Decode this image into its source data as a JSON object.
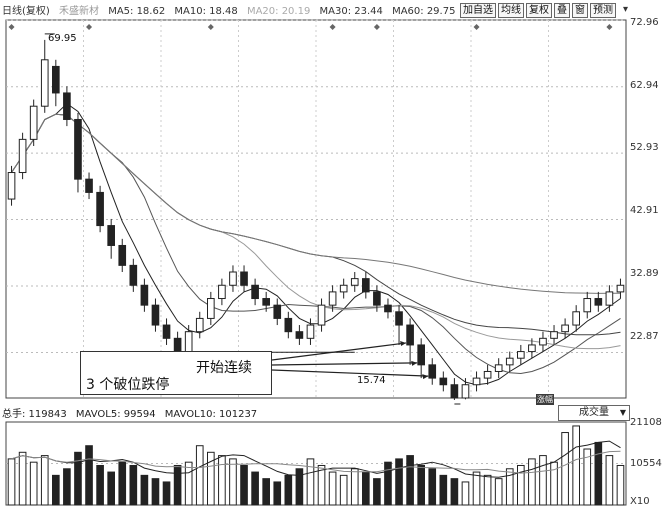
{
  "header": {
    "title": "日线(复权)",
    "stock": "禾盛新材",
    "ma": [
      {
        "label": "MA5: 18.62",
        "muted": false
      },
      {
        "label": "MA10: 18.48",
        "muted": false
      },
      {
        "label": "MA20: 20.19",
        "muted": true
      },
      {
        "label": "MA30: 23.44",
        "muted": false
      },
      {
        "label": "MA60: 29.75",
        "muted": false
      }
    ],
    "buttons": [
      "加自选",
      "均线",
      "复权",
      "叠",
      "窗",
      "预测"
    ],
    "menu_icon": "chevron-down-icon"
  },
  "chart_data": {
    "type": "candlestick",
    "price_axis": {
      "ticks": [
        "72.96",
        "62.94",
        "52.93",
        "42.91",
        "32.89",
        "22.87"
      ],
      "ylim": [
        16,
        73
      ]
    },
    "annotations": {
      "high_label": "69.95",
      "low_label": "15.74",
      "note_1": "开始连续",
      "note_2": "3 个破位跌停",
      "event_badge": "涨幅"
    },
    "candles": [
      [
        46,
        50,
        45,
        51
      ],
      [
        50,
        55,
        49,
        56
      ],
      [
        55,
        60,
        54,
        61
      ],
      [
        60,
        67,
        59,
        70
      ],
      [
        66,
        62,
        60,
        67
      ],
      [
        62,
        58,
        57,
        63
      ],
      [
        58,
        49,
        47,
        59
      ],
      [
        49,
        47,
        46,
        50
      ],
      [
        47,
        42,
        41,
        48
      ],
      [
        42,
        39,
        37,
        43
      ],
      [
        39,
        36,
        35,
        40
      ],
      [
        36,
        33,
        32,
        37
      ],
      [
        33,
        30,
        29,
        34
      ],
      [
        30,
        27,
        26,
        31
      ],
      [
        27,
        25,
        24,
        28
      ],
      [
        25,
        23,
        22,
        26
      ],
      [
        23,
        26,
        22,
        27
      ],
      [
        26,
        28,
        25,
        29
      ],
      [
        28,
        31,
        27,
        32
      ],
      [
        31,
        33,
        30,
        34
      ],
      [
        33,
        35,
        32,
        36
      ],
      [
        35,
        33,
        32,
        36
      ],
      [
        33,
        31,
        30,
        34
      ],
      [
        31,
        30,
        29,
        32
      ],
      [
        30,
        28,
        27,
        31
      ],
      [
        28,
        26,
        25,
        29
      ],
      [
        26,
        25,
        24,
        27
      ],
      [
        25,
        27,
        24,
        28
      ],
      [
        27,
        30,
        26,
        31
      ],
      [
        30,
        32,
        29,
        33
      ],
      [
        32,
        33,
        31,
        34
      ],
      [
        33,
        34,
        32,
        35
      ],
      [
        34,
        32,
        31,
        35
      ],
      [
        32,
        30,
        29,
        33
      ],
      [
        30,
        29,
        28,
        31
      ],
      [
        29,
        27,
        24,
        30
      ],
      [
        27,
        24,
        21,
        28
      ],
      [
        24,
        21,
        19,
        25
      ],
      [
        21,
        19,
        18,
        22
      ],
      [
        19,
        18,
        17,
        20
      ],
      [
        18,
        16,
        15.7,
        19
      ],
      [
        16,
        18,
        15.8,
        19
      ],
      [
        18,
        19,
        17,
        20
      ],
      [
        19,
        20,
        18,
        21
      ],
      [
        20,
        21,
        19,
        22
      ],
      [
        21,
        22,
        20,
        23
      ],
      [
        22,
        23,
        21,
        24
      ],
      [
        23,
        24,
        22,
        25
      ],
      [
        24,
        25,
        23,
        26
      ],
      [
        25,
        26,
        24,
        27
      ],
      [
        26,
        27,
        25,
        28
      ],
      [
        27,
        29,
        26,
        30
      ],
      [
        29,
        31,
        28,
        32
      ],
      [
        31,
        30,
        29,
        32
      ],
      [
        30,
        32,
        29,
        33
      ],
      [
        32,
        33,
        31,
        34
      ]
    ],
    "ma_lines": [
      {
        "name": "MA5",
        "color": "#222222"
      },
      {
        "name": "MA10",
        "color": "#555555"
      },
      {
        "name": "MA20",
        "color": "#999999"
      },
      {
        "name": "MA30",
        "color": "#444444"
      },
      {
        "name": "MA60",
        "color": "#777777"
      }
    ],
    "volume": {
      "summary": [
        {
          "label": "总手: 119843"
        },
        {
          "label": "MAVOL5: 99594"
        },
        {
          "label": "MAVOL10: 101237"
        }
      ],
      "selector": "成交量",
      "axis_ticks": [
        "21108",
        "10554"
      ],
      "axis_unit": "X10",
      "values": [
        14,
        16,
        13,
        15,
        9,
        11,
        16,
        18,
        12,
        10,
        13,
        12,
        9,
        8,
        7,
        12,
        13,
        18,
        16,
        15,
        14,
        12,
        10,
        8,
        7,
        9,
        11,
        14,
        12,
        10,
        9,
        11,
        10,
        8,
        13,
        14,
        15,
        12,
        11,
        9,
        8,
        7,
        10,
        9,
        8,
        11,
        12,
        14,
        15,
        13,
        22,
        24,
        17,
        19,
        15,
        12
      ]
    }
  }
}
